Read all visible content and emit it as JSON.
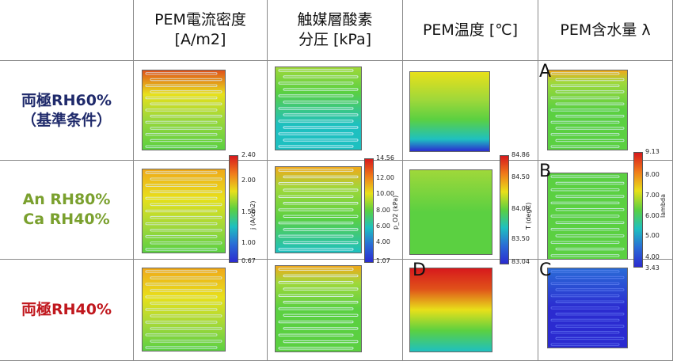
{
  "columns": [
    {
      "line1": "",
      "line2": ""
    },
    {
      "line1": "PEM電流密度",
      "line2": "[A/m2]"
    },
    {
      "line1": "触媒層酸素",
      "line2": "分圧 [kPa]"
    },
    {
      "line1": "PEM温度 [℃]",
      "line2": ""
    },
    {
      "line1": "PEM含水量 λ",
      "line2": ""
    }
  ],
  "rows": [
    {
      "line1": "両極RH60%",
      "line2": "（基準条件）",
      "color": "#1f2a6b"
    },
    {
      "line1": "An RH80%",
      "line2": "Ca RH40%",
      "color": "#7aa02e"
    },
    {
      "line1": "両極RH40%",
      "line2": "",
      "color": "#c0171d"
    }
  ],
  "colorbars": [
    {
      "axis_label": "j (A/cm2)",
      "ticks": [
        "2.40",
        "2.00",
        "1.50",
        "1.00",
        "0.67"
      ]
    },
    {
      "axis_label": "p_O2 (kPa)",
      "ticks": [
        "14.56",
        "12.00",
        "10.00",
        "8.00",
        "6.00",
        "4.00",
        "1.07"
      ]
    },
    {
      "axis_label": "T (degC)",
      "ticks": [
        "84.86",
        "84.50",
        "84.00",
        "83.50",
        "83.04"
      ]
    },
    {
      "axis_label": "lambda",
      "ticks": [
        "9.13",
        "8.00",
        "7.00",
        "6.00",
        "5.00",
        "4.00",
        "3.43"
      ]
    }
  ],
  "markers": [
    "A",
    "B",
    "C",
    "D"
  ]
}
